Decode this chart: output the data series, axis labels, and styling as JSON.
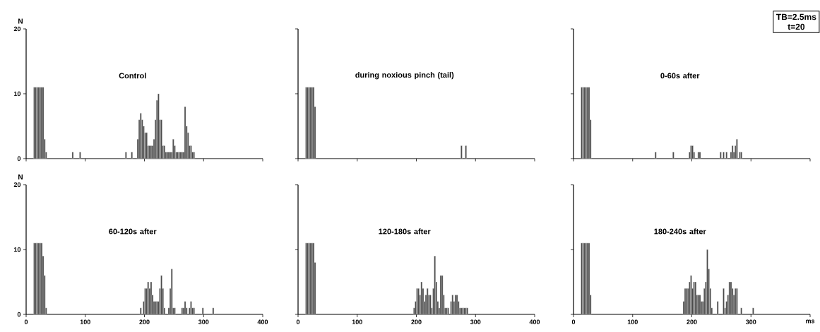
{
  "chart_data": [
    {
      "type": "bar",
      "title": "Control",
      "ylabel": "N",
      "color": "#4a4a4a",
      "xlim": [
        0,
        400
      ],
      "ylim": [
        0,
        20
      ],
      "xticks": [
        0,
        100,
        200,
        300,
        400
      ],
      "yticks": [
        0,
        10,
        20
      ],
      "tick_labels": "y",
      "x": [
        13.75,
        16.25,
        18.75,
        21.25,
        23.75,
        26.25,
        28.75,
        31.25,
        33.75,
        78.75,
        91.25,
        168.75,
        178.75,
        188.75,
        191.25,
        193.75,
        196.25,
        198.75,
        201.25,
        203.75,
        206.25,
        208.75,
        211.25,
        213.75,
        216.25,
        218.75,
        221.25,
        223.75,
        226.25,
        228.75,
        231.25,
        233.75,
        236.25,
        238.75,
        241.25,
        243.75,
        246.25,
        248.75,
        251.25,
        253.75,
        256.25,
        258.75,
        261.25,
        263.75,
        266.25,
        268.75,
        271.25,
        273.75,
        276.25,
        278.75,
        281.25,
        283.75
      ],
      "values": [
        11,
        11,
        11,
        11,
        11,
        11,
        11,
        3,
        1,
        1,
        1,
        1,
        1,
        3,
        6,
        7,
        6,
        5,
        4,
        4,
        2,
        2,
        2,
        2,
        3,
        6,
        9,
        10,
        6,
        6,
        2,
        2,
        1,
        1,
        1,
        1,
        1,
        3,
        2,
        1,
        1,
        1,
        1,
        1,
        1,
        8,
        5,
        4,
        2,
        2,
        1,
        1
      ]
    },
    {
      "type": "bar",
      "title": "during noxious pinch (tail)",
      "color": "#4a4a4a",
      "xlim": [
        0,
        400
      ],
      "ylim": [
        0,
        20
      ],
      "xticks": [
        0,
        100,
        200,
        300,
        400
      ],
      "yticks": [
        0,
        10,
        20
      ],
      "tick_labels": false,
      "x": [
        13.75,
        16.25,
        18.75,
        21.25,
        23.75,
        26.25,
        28.75,
        276.25,
        283.75
      ],
      "values": [
        11,
        11,
        11,
        11,
        11,
        11,
        8,
        2,
        2
      ]
    },
    {
      "type": "bar",
      "title": "0-60s after",
      "annotations": [
        "TB=2.5ms",
        "t=20"
      ],
      "color": "#4a4a4a",
      "xlim": [
        0,
        400
      ],
      "ylim": [
        0,
        20
      ],
      "xticks": [
        0,
        100,
        200,
        300,
        400
      ],
      "yticks": [
        0,
        10,
        20
      ],
      "tick_labels": false,
      "x": [
        13.75,
        16.25,
        18.75,
        21.25,
        23.75,
        26.25,
        28.75,
        138.75,
        168.75,
        196.25,
        198.75,
        201.25,
        203.75,
        211.25,
        213.75,
        248.75,
        253.75,
        258.75,
        266.25,
        268.75,
        271.25,
        273.75,
        276.25,
        281.25,
        283.75
      ],
      "values": [
        11,
        11,
        11,
        11,
        11,
        11,
        6,
        1,
        1,
        1,
        2,
        2,
        1,
        1,
        1,
        1,
        1,
        1,
        1,
        2,
        1,
        2,
        3,
        1,
        1
      ]
    },
    {
      "type": "bar",
      "title": "60-120s after",
      "ylabel": "N",
      "color": "#4a4a4a",
      "xlim": [
        0,
        400
      ],
      "ylim": [
        0,
        20
      ],
      "xticks": [
        0,
        100,
        200,
        300,
        400
      ],
      "yticks": [
        0,
        10,
        20
      ],
      "x": [
        13.75,
        16.25,
        18.75,
        21.25,
        23.75,
        26.25,
        28.75,
        31.25,
        33.75,
        193.75,
        198.75,
        201.25,
        203.75,
        206.25,
        208.75,
        211.25,
        213.75,
        216.25,
        218.75,
        221.25,
        223.75,
        226.25,
        228.75,
        231.25,
        233.75,
        241.25,
        243.75,
        246.25,
        248.75,
        251.25,
        263.75,
        266.25,
        268.75,
        271.25,
        276.25,
        278.75,
        281.25,
        283.75,
        298.75,
        316.25
      ],
      "values": [
        11,
        11,
        11,
        11,
        11,
        11,
        9,
        6,
        1,
        1,
        2,
        4,
        4,
        5,
        4,
        5,
        3,
        2,
        2,
        2,
        2,
        4,
        6,
        4,
        1,
        1,
        4,
        7,
        1,
        1,
        1,
        1,
        2,
        1,
        1,
        2,
        1,
        1,
        1,
        1
      ]
    },
    {
      "type": "bar",
      "title": "120-180s after",
      "color": "#4a4a4a",
      "xlim": [
        0,
        400
      ],
      "ylim": [
        0,
        20
      ],
      "xticks": [
        0,
        100,
        200,
        300,
        400
      ],
      "yticks": [
        0,
        10,
        20
      ],
      "tick_labels": "x",
      "x": [
        13.75,
        16.25,
        18.75,
        21.25,
        23.75,
        26.25,
        28.75,
        196.25,
        198.75,
        201.25,
        203.75,
        206.25,
        208.75,
        211.25,
        213.75,
        216.25,
        218.75,
        221.25,
        223.75,
        226.25,
        228.75,
        231.25,
        233.75,
        236.25,
        238.75,
        241.25,
        243.75,
        246.25,
        248.75,
        251.25,
        253.75,
        258.75,
        261.25,
        263.75,
        266.25,
        268.75,
        271.25,
        273.75,
        276.25,
        278.75,
        281.25,
        283.75,
        286.25
      ],
      "values": [
        11,
        11,
        11,
        11,
        11,
        11,
        8,
        1,
        2,
        4,
        4,
        3,
        5,
        4,
        2,
        3,
        4,
        3,
        3,
        1,
        4,
        9,
        5,
        2,
        1,
        6,
        6,
        3,
        1,
        1,
        1,
        2,
        3,
        2,
        3,
        3,
        2,
        1,
        1,
        1,
        1,
        1,
        1
      ]
    },
    {
      "type": "bar",
      "title": "180-240s after",
      "color": "#4a4a4a",
      "xlim": [
        0,
        400
      ],
      "ylim": [
        0,
        20
      ],
      "xticks": [
        0,
        100,
        200,
        300,
        {
          "value": 400,
          "label": "ms"
        }
      ],
      "yticks": [
        0,
        10,
        20
      ],
      "tick_labels": "x",
      "x": [
        13.75,
        16.25,
        18.75,
        21.25,
        23.75,
        26.25,
        28.75,
        186.25,
        188.75,
        191.25,
        193.75,
        196.25,
        198.75,
        201.25,
        203.75,
        206.25,
        208.75,
        211.25,
        213.75,
        216.25,
        218.75,
        221.25,
        223.75,
        226.25,
        228.75,
        231.25,
        233.75,
        243.75,
        253.75,
        256.25,
        258.75,
        261.25,
        263.75,
        266.25,
        268.75,
        271.25,
        273.75,
        276.25,
        283.75,
        303.75
      ],
      "values": [
        11,
        11,
        11,
        11,
        11,
        11,
        3,
        2,
        4,
        4,
        4,
        5,
        6,
        4,
        5,
        5,
        3,
        3,
        3,
        2,
        2,
        4,
        5,
        10,
        7,
        4,
        1,
        2,
        4,
        1,
        2,
        3,
        5,
        5,
        4,
        3,
        4,
        4,
        1,
        1
      ]
    }
  ]
}
